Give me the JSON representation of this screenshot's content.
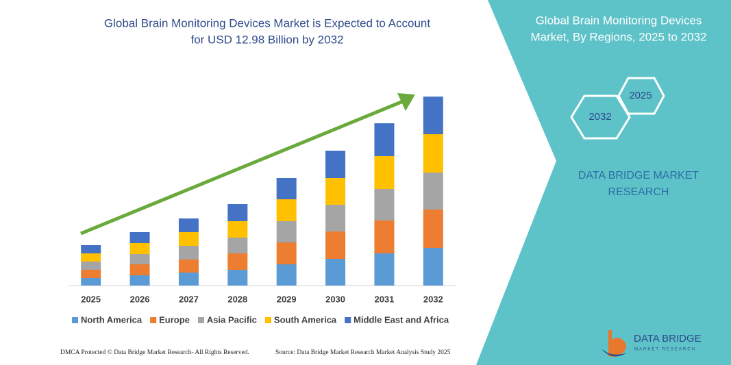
{
  "chart_data": {
    "type": "bar",
    "stacked": true,
    "title": [
      "Global Brain Monitoring Devices Market is Expected to Account",
      "for USD 12.98 Billion by 2032"
    ],
    "categories": [
      "2025",
      "2026",
      "2027",
      "2028",
      "2029",
      "2030",
      "2031",
      "2032"
    ],
    "series": [
      {
        "name": "North America",
        "color": "#5b9bd5",
        "values": [
          11,
          15,
          19,
          23,
          31,
          39,
          47,
          55
        ]
      },
      {
        "name": "Europe",
        "color": "#ed7d31",
        "values": [
          12,
          16,
          19,
          24,
          32,
          40,
          48,
          56
        ]
      },
      {
        "name": "Asia Pacific",
        "color": "#a5a5a5",
        "values": [
          12,
          15,
          20,
          23,
          31,
          39,
          46,
          54
        ]
      },
      {
        "name": "South America",
        "color": "#ffc000",
        "values": [
          12,
          16,
          20,
          24,
          32,
          39,
          48,
          56
        ]
      },
      {
        "name": "Middle East and Africa",
        "color": "#4472c4",
        "values": [
          12,
          16,
          20,
          25,
          31,
          40,
          48,
          55
        ]
      }
    ]
  },
  "panel": {
    "title": [
      "Global Brain Monitoring Devices",
      "Market, By Regions, 2025 to 2032"
    ],
    "hexagons": [
      "2025",
      "2032"
    ],
    "brand": [
      "DATA BRIDGE MARKET",
      "RESEARCH"
    ]
  },
  "logo": {
    "name": "DATA BRIDGE",
    "tagline": "MARKET RESEARCH"
  },
  "footer": {
    "left": "DMCA Protected © Data Bridge Market Research- All Rights Reserved.",
    "right": "Source: Data Bridge Market Research Market Analysis Study 2025"
  }
}
